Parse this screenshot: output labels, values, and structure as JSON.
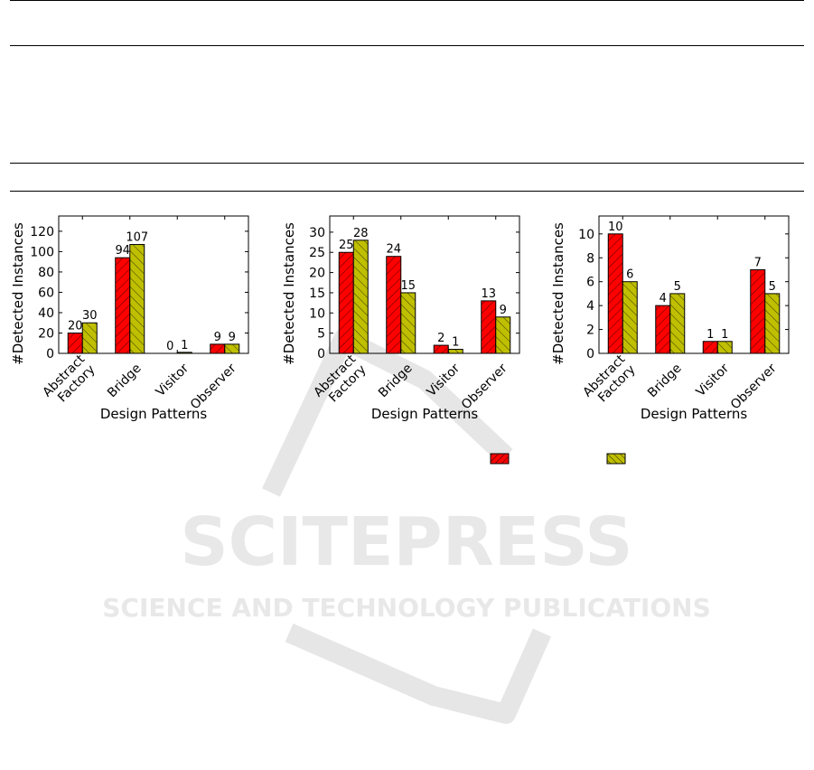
{
  "colors": {
    "series_a": "#ff0000",
    "series_b": "#bfbf00",
    "watermark": "#e8e8e8"
  },
  "watermark": {
    "main": "SCITEPRESS",
    "sub": "SCIENCE AND TECHNOLOGY PUBLICATIONS"
  },
  "chart_data": [
    {
      "type": "bar",
      "categories": [
        "Abstract\nFactory",
        "Bridge",
        "Visitor",
        "Observer"
      ],
      "xlabel": "Design Patterns",
      "ylabel": "#Detected Instances",
      "ylim": [
        0,
        135
      ],
      "yticks": [
        0,
        20,
        40,
        60,
        80,
        100,
        120
      ],
      "series": [
        {
          "values": [
            20,
            94,
            0,
            9
          ],
          "labels": [
            "20",
            "94",
            "0",
            "9"
          ]
        },
        {
          "values": [
            30,
            107,
            1,
            9
          ],
          "labels": [
            "30",
            "107",
            "1",
            "9"
          ]
        }
      ]
    },
    {
      "type": "bar",
      "categories": [
        "Abstract\nFactory",
        "Bridge",
        "Visitor",
        "Observer"
      ],
      "xlabel": "Design Patterns",
      "ylabel": "#Detected Instances",
      "ylim": [
        0,
        34
      ],
      "yticks": [
        0,
        5,
        10,
        15,
        20,
        25,
        30
      ],
      "series": [
        {
          "values": [
            25,
            24,
            2,
            13
          ],
          "labels": [
            "25",
            "24",
            "2",
            "13"
          ]
        },
        {
          "values": [
            28,
            15,
            1,
            9
          ],
          "labels": [
            "28",
            "15",
            "1",
            "9"
          ]
        }
      ]
    },
    {
      "type": "bar",
      "categories": [
        "Abstract\nFactory",
        "Bridge",
        "Visitor",
        "Observer"
      ],
      "xlabel": "Design Patterns",
      "ylabel": "#Detected Instances",
      "ylim": [
        0,
        11.5
      ],
      "yticks": [
        0,
        2,
        4,
        6,
        8,
        10
      ],
      "series": [
        {
          "values": [
            10,
            4,
            1,
            7
          ],
          "labels": [
            "10",
            "4",
            "1",
            "7"
          ]
        },
        {
          "values": [
            6,
            5,
            1,
            5
          ],
          "labels": [
            "6",
            "5",
            "1",
            "5"
          ]
        }
      ]
    }
  ]
}
